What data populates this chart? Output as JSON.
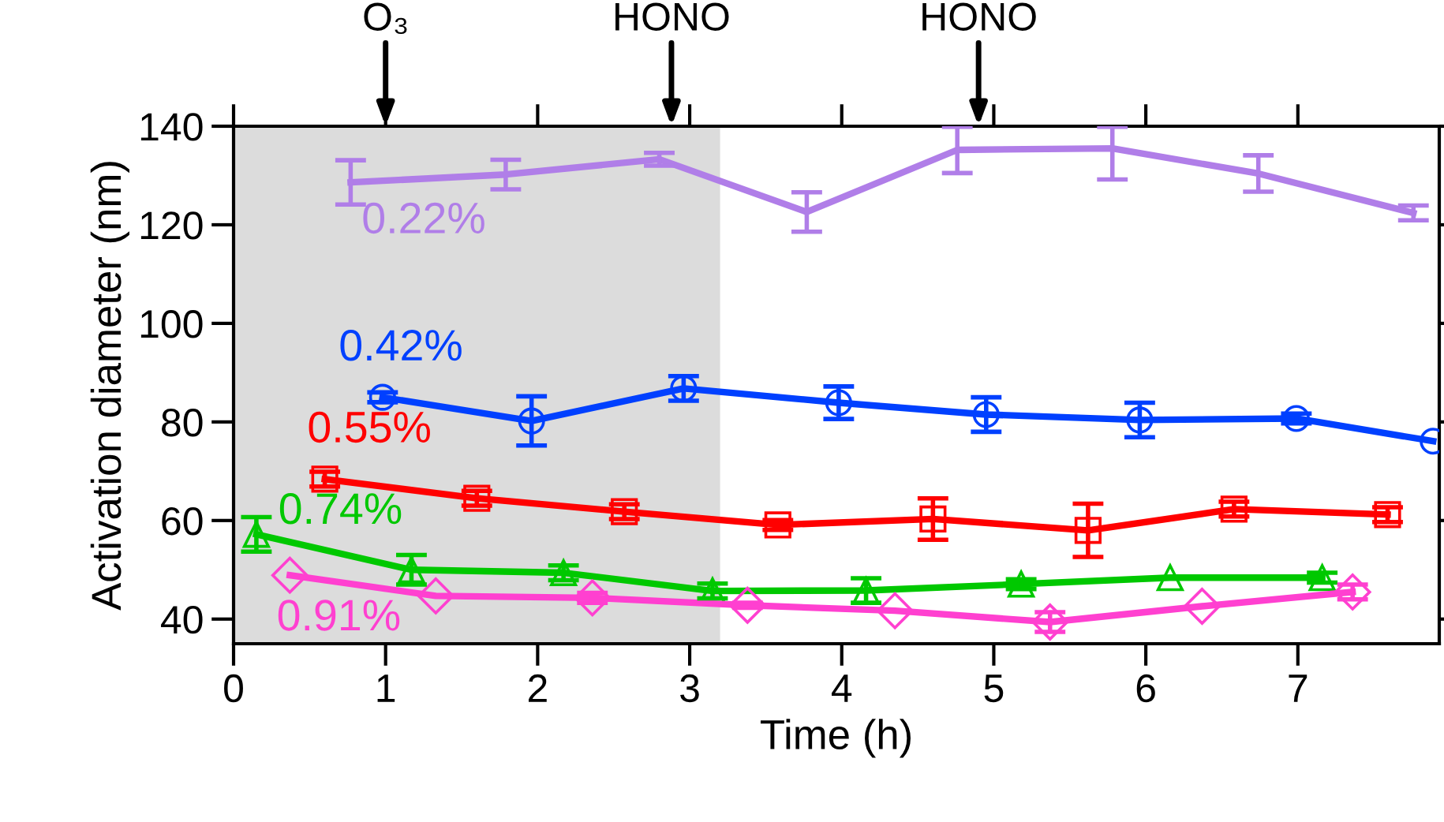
{
  "chart_data": {
    "type": "line",
    "xlabel": "Time (h)",
    "ylabel": "Activation diameter (nm)",
    "xlim": [
      0,
      7.93
    ],
    "xticks": [
      0,
      1,
      2,
      3,
      4,
      5,
      6,
      7
    ],
    "ylim": [
      35,
      140
    ],
    "yticks": [
      40,
      60,
      80,
      100,
      120,
      140
    ],
    "grid": false,
    "legend": false,
    "line_style": "solid",
    "bands": [
      {
        "axis": "x",
        "from": 0,
        "to": 3.2,
        "color": "#dcdcdc"
      }
    ],
    "annotations": [
      {
        "text": "O₃",
        "x": 1,
        "y": 140
      },
      {
        "text": "HONO",
        "x": 2.88,
        "y": 140
      },
      {
        "text": "HONO",
        "x": 4.9,
        "y": 140
      }
    ],
    "series": [
      {
        "name": "0.22%",
        "color": "#b07ee8",
        "marker": "none",
        "x": [
          0.77,
          1.79,
          2.8,
          3.77,
          4.76,
          5.78,
          6.74,
          7.76
        ],
        "values": [
          128.6,
          130.2,
          133.3,
          122.6,
          135.2,
          135.5,
          130.4,
          122.4
        ],
        "errors": [
          4.5,
          3,
          1.3,
          4,
          4.7,
          [
            129.2,
            139.9
          ],
          3.7,
          1.5
        ]
      },
      {
        "name": "0.42%",
        "color": "#0040ff",
        "marker": "circle",
        "x": [
          0.98,
          1.96,
          2.96,
          3.98,
          4.95,
          5.96,
          6.99,
          7.89
        ],
        "values": [
          85.0,
          80.2,
          86.8,
          83.9,
          81.5,
          80.4,
          80.7,
          76.1
        ],
        "errors": [
          1,
          5,
          2.5,
          3.3,
          3.5,
          3.5,
          1,
          null
        ]
      },
      {
        "name": "0.55%",
        "color": "#ff0000",
        "marker": "square",
        "x": [
          0.6,
          1.6,
          2.57,
          3.58,
          4.6,
          5.62,
          6.58,
          7.59
        ],
        "values": [
          68.4,
          64.5,
          61.8,
          59.1,
          60.3,
          58.0,
          62.3,
          61.2
        ],
        "errors": [
          1.5,
          1.5,
          1.5,
          1,
          4.2,
          5.4,
          1.5,
          1.5
        ]
      },
      {
        "name": "0.74%",
        "color": "#00c800",
        "marker": "triangle",
        "x": [
          0.15,
          1.17,
          2.17,
          3.15,
          4.16,
          5.18,
          6.16,
          7.16
        ],
        "values": [
          57.2,
          50.0,
          49.4,
          45.7,
          45.8,
          47.1,
          48.4,
          48.4
        ],
        "errors": [
          3.5,
          3,
          1.5,
          1.5,
          2.5,
          1,
          null,
          1
        ]
      },
      {
        "name": "0.91%",
        "color": "#ff40d0",
        "marker": "diamond",
        "x": [
          0.37,
          1.33,
          2.36,
          3.38,
          4.35,
          5.37,
          6.37,
          7.36
        ],
        "values": [
          48.9,
          44.7,
          44.3,
          42.8,
          41.7,
          39.4,
          42.6,
          45.5
        ],
        "errors": [
          null,
          null,
          1,
          0.5,
          null,
          2,
          null,
          1.5
        ]
      }
    ]
  }
}
